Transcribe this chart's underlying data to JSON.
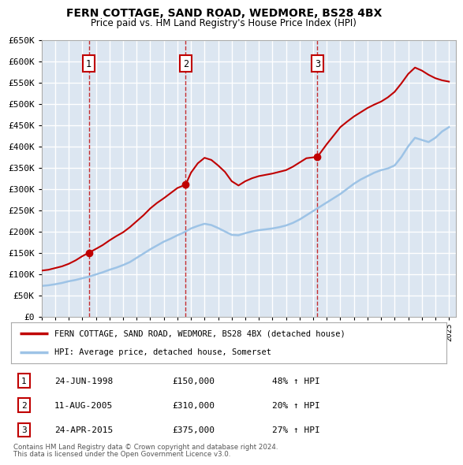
{
  "title": "FERN COTTAGE, SAND ROAD, WEDMORE, BS28 4BX",
  "subtitle": "Price paid vs. HM Land Registry's House Price Index (HPI)",
  "legend_line1": "FERN COTTAGE, SAND ROAD, WEDMORE, BS28 4BX (detached house)",
  "legend_line2": "HPI: Average price, detached house, Somerset",
  "footer1": "Contains HM Land Registry data © Crown copyright and database right 2024.",
  "footer2": "This data is licensed under the Open Government Licence v3.0.",
  "sales": [
    {
      "num": 1,
      "date": "24-JUN-1998",
      "price": 150000,
      "pct": "48% ↑ HPI",
      "year": 1998.48
    },
    {
      "num": 2,
      "date": "11-AUG-2005",
      "price": 310000,
      "pct": "20% ↑ HPI",
      "year": 2005.61
    },
    {
      "num": 3,
      "date": "24-APR-2015",
      "price": 375000,
      "pct": "27% ↑ HPI",
      "year": 2015.31
    }
  ],
  "ylim": [
    0,
    650000
  ],
  "yticks": [
    0,
    50000,
    100000,
    150000,
    200000,
    250000,
    300000,
    350000,
    400000,
    450000,
    500000,
    550000,
    600000,
    650000
  ],
  "xlim_start": 1995,
  "xlim_end": 2025.5,
  "background_color": "#dce6f1",
  "red_color": "#c00000",
  "blue_color": "#9dc3e6",
  "grid_color": "#ffffff",
  "hpi_years": [
    1995,
    1995.5,
    1996,
    1996.5,
    1997,
    1997.5,
    1998,
    1998.5,
    1999,
    1999.5,
    2000,
    2000.5,
    2001,
    2001.5,
    2002,
    2002.5,
    2003,
    2003.5,
    2004,
    2004.5,
    2005,
    2005.5,
    2006,
    2006.5,
    2007,
    2007.5,
    2008,
    2008.5,
    2009,
    2009.5,
    2010,
    2010.5,
    2011,
    2011.5,
    2012,
    2012.5,
    2013,
    2013.5,
    2014,
    2014.5,
    2015,
    2015.5,
    2016,
    2016.5,
    2017,
    2017.5,
    2018,
    2018.5,
    2019,
    2019.5,
    2020,
    2020.5,
    2021,
    2021.5,
    2022,
    2022.5,
    2023,
    2023.5,
    2024,
    2024.5,
    2025
  ],
  "hpi_values": [
    72000,
    73500,
    76000,
    79000,
    83000,
    86000,
    90000,
    94000,
    99000,
    104000,
    110000,
    115000,
    121000,
    128000,
    138000,
    148000,
    158000,
    167000,
    176000,
    183000,
    191000,
    198000,
    207000,
    213000,
    218000,
    215000,
    208000,
    200000,
    192000,
    191000,
    196000,
    200000,
    203000,
    205000,
    207000,
    210000,
    214000,
    220000,
    228000,
    238000,
    248000,
    258000,
    268000,
    278000,
    288000,
    300000,
    312000,
    322000,
    330000,
    338000,
    344000,
    348000,
    355000,
    375000,
    400000,
    420000,
    415000,
    410000,
    420000,
    435000,
    445000
  ],
  "red_years": [
    1995,
    1995.5,
    1996,
    1996.5,
    1997,
    1997.5,
    1998.0,
    1998.48,
    1999,
    1999.5,
    2000,
    2000.5,
    2001,
    2001.5,
    2002,
    2002.5,
    2003,
    2003.5,
    2004,
    2004.5,
    2005.0,
    2005.61,
    2006,
    2006.5,
    2007,
    2007.5,
    2008,
    2008.5,
    2009,
    2009.5,
    2010,
    2010.5,
    2011,
    2011.5,
    2012,
    2012.5,
    2013,
    2013.5,
    2014,
    2014.5,
    2015.0,
    2015.31,
    2016,
    2016.5,
    2017,
    2017.5,
    2018,
    2018.5,
    2019,
    2019.5,
    2020,
    2020.5,
    2021,
    2021.5,
    2022,
    2022.5,
    2023,
    2023.5,
    2024,
    2024.5,
    2025
  ],
  "red_values": [
    108000,
    110000,
    114000,
    118000,
    124000,
    132000,
    142000,
    150000,
    159000,
    168000,
    179000,
    189000,
    198000,
    210000,
    224000,
    238000,
    254000,
    267000,
    278000,
    290000,
    302000,
    310000,
    338000,
    360000,
    373000,
    368000,
    355000,
    340000,
    318000,
    308000,
    318000,
    325000,
    330000,
    333000,
    336000,
    340000,
    344000,
    352000,
    362000,
    372000,
    374000,
    375000,
    405000,
    425000,
    445000,
    458000,
    470000,
    480000,
    490000,
    498000,
    505000,
    515000,
    528000,
    548000,
    570000,
    585000,
    578000,
    568000,
    560000,
    555000,
    552000
  ]
}
